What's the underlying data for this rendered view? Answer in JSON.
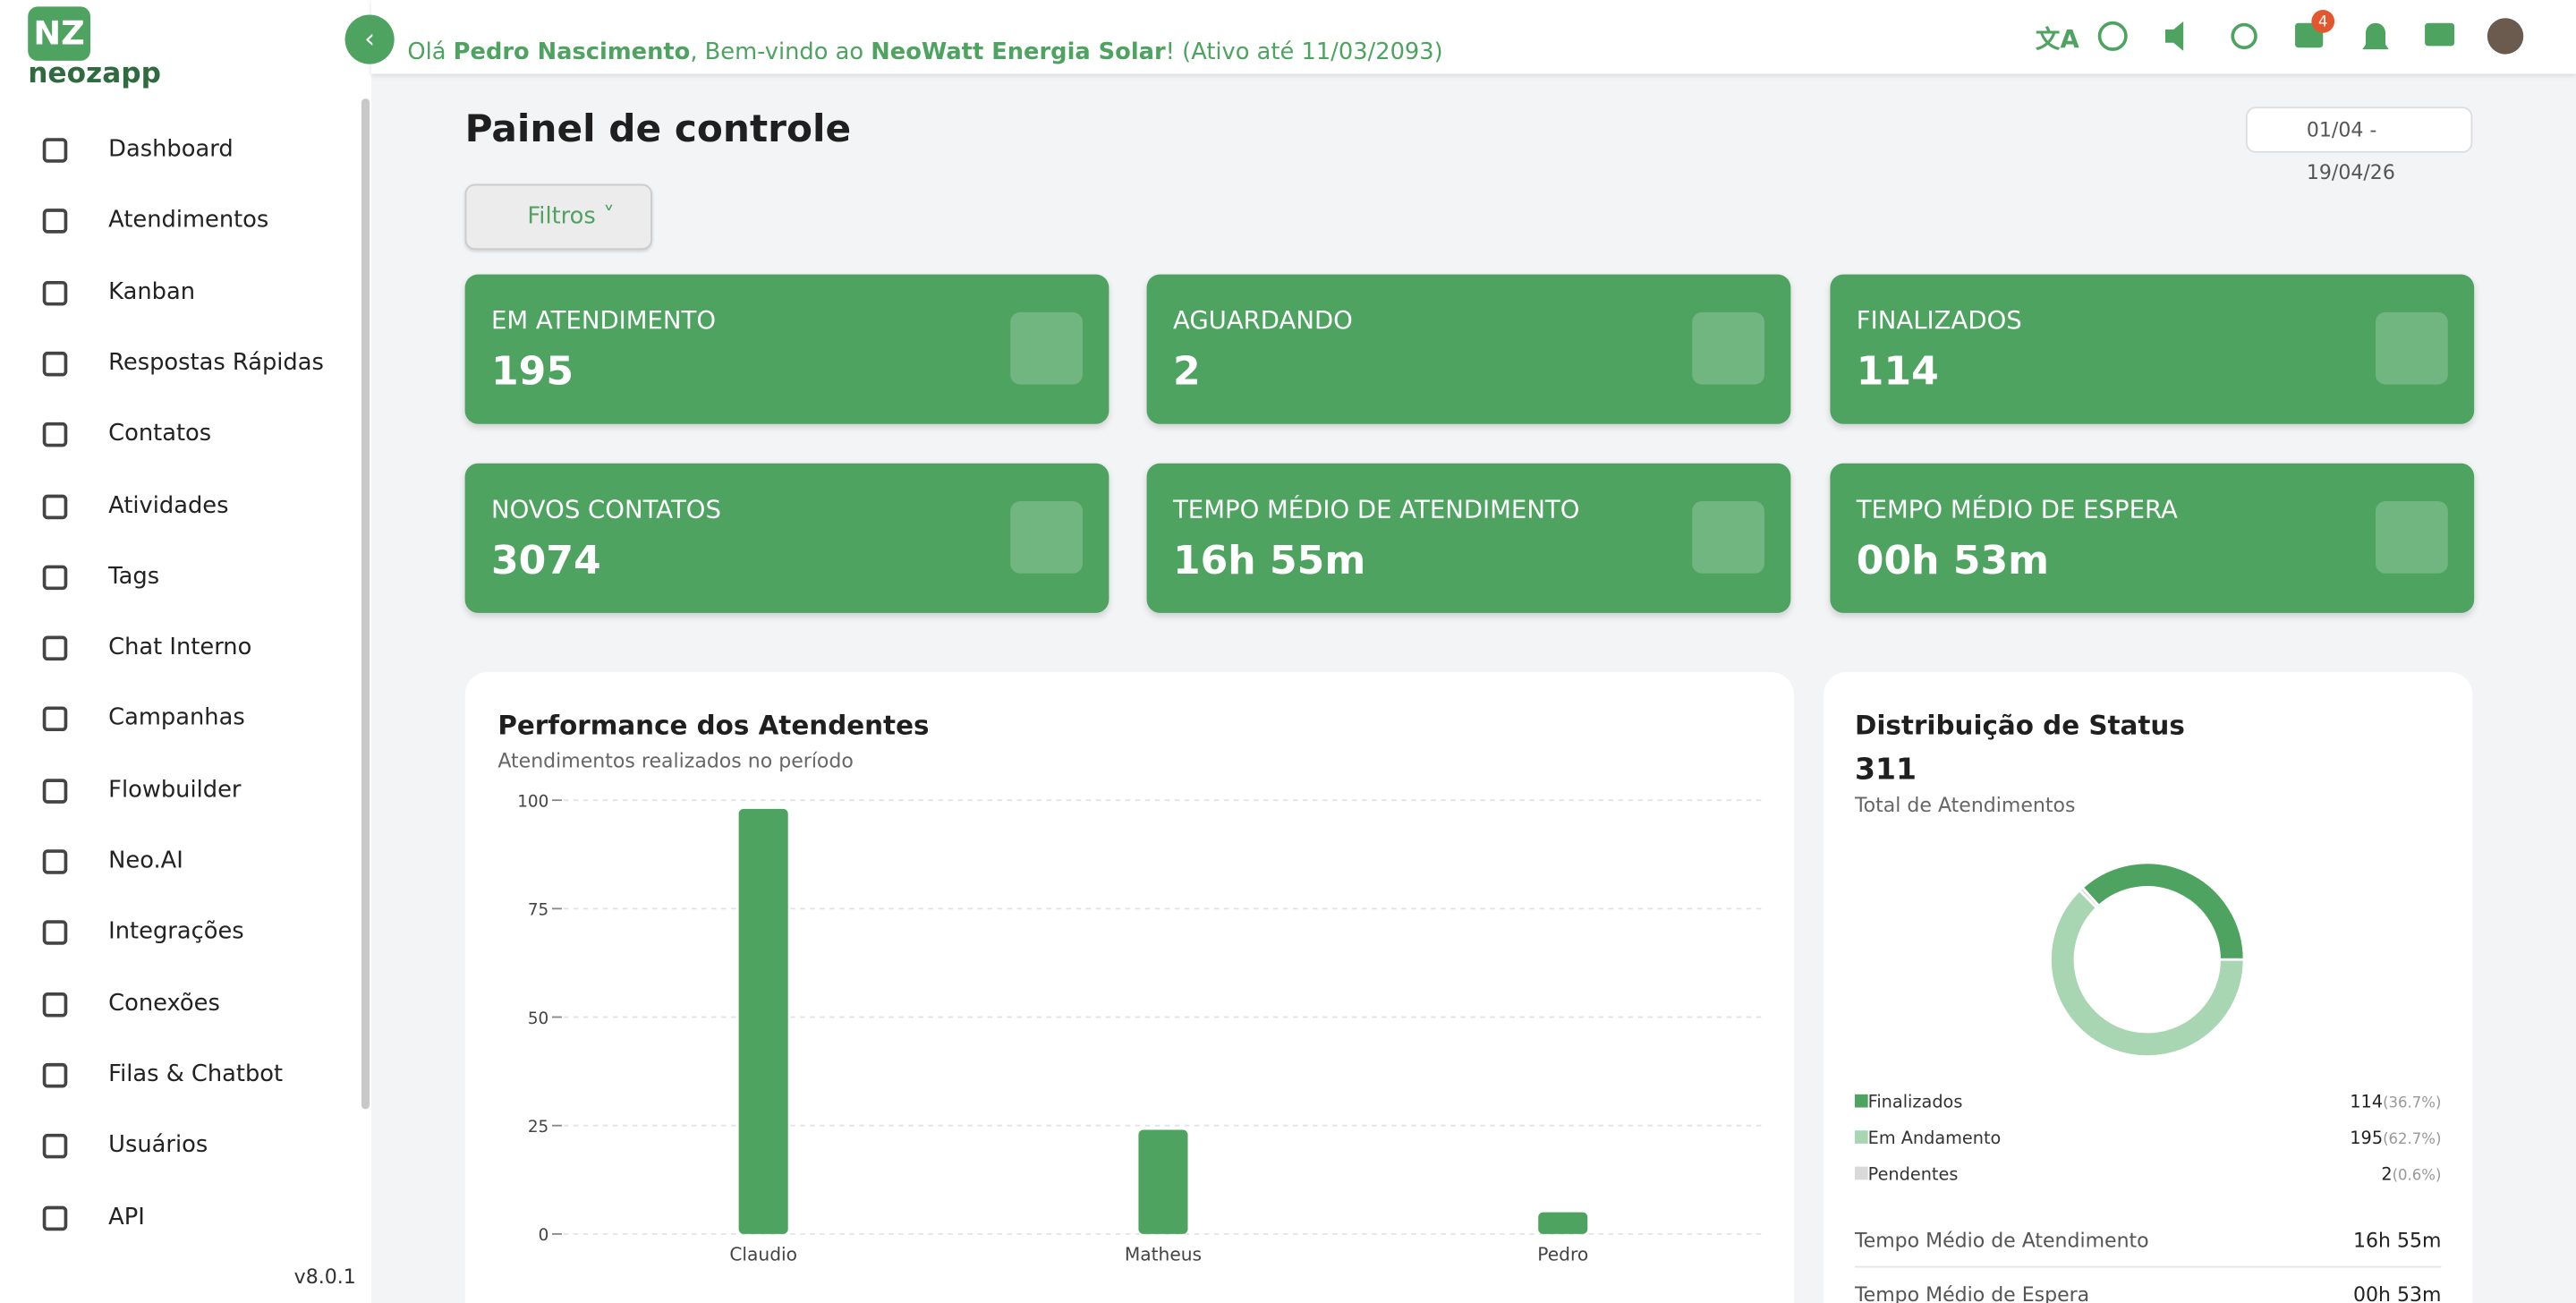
{
  "logo": {
    "mark": "NZ",
    "name": "neozapp"
  },
  "header": {
    "greeting_prefix": "Olá",
    "user": "Pedro Nascimento",
    "greeting_mid": ", Bem-vindo ao",
    "company": "NeoWatt Energia Solar",
    "greeting_suffix": "! (Ativo até 11/03/2093)",
    "badge": "4"
  },
  "sidebar": {
    "items": [
      "Dashboard",
      "Atendimentos",
      "Kanban",
      "Respostas Rápidas",
      "Contatos",
      "Atividades",
      "Tags",
      "Chat Interno",
      "Campanhas",
      "Flowbuilder",
      "Neo.AI",
      "Integrações",
      "Conexões",
      "Filas & Chatbot",
      "Usuários",
      "API"
    ],
    "version": "v8.0.1"
  },
  "page": {
    "title": "Painel de controle",
    "date_range": "01/04 - 19/04/26",
    "filters": "Filtros"
  },
  "cards": [
    {
      "label": "EM ATENDIMENTO",
      "value": "195"
    },
    {
      "label": "AGUARDANDO",
      "value": "2"
    },
    {
      "label": "FINALIZADOS",
      "value": "114"
    },
    {
      "label": "NOVOS CONTATOS",
      "value": "3074"
    },
    {
      "label": "TEMPO MÉDIO DE ATENDIMENTO",
      "value": "16h 55m"
    },
    {
      "label": "TEMPO MÉDIO DE ESPERA",
      "value": "00h 53m"
    }
  ],
  "performance": {
    "title": "Performance dos Atendentes",
    "subtitle": "Atendimentos realizados no período",
    "chart_data": {
      "type": "bar",
      "categories": [
        "Claudio",
        "Matheus",
        "Pedro"
      ],
      "values": [
        98,
        24,
        5
      ],
      "color": "#4ea361",
      "ylim": [
        0,
        100
      ],
      "yticks": [
        0,
        25,
        50,
        75,
        100
      ],
      "grid": true
    }
  },
  "status": {
    "title": "Distribuição de Status",
    "total": "311",
    "total_label": "Total de Atendimentos",
    "chart_data": {
      "type": "donut",
      "categories": [
        "Finalizados",
        "Em Andamento",
        "Pendentes"
      ],
      "values": [
        114,
        195,
        2
      ],
      "shares": [
        "(36.7%)",
        "(62.7%)",
        "(0.6%)"
      ],
      "colors": [
        "#4ea361",
        "#a8d5b2",
        "#d9d9d9"
      ]
    },
    "stats": [
      {
        "label": "Tempo Médio de Atendimento",
        "value": "16h 55m"
      },
      {
        "label": "Tempo Médio de Espera",
        "value": "00h 53m"
      }
    ]
  }
}
